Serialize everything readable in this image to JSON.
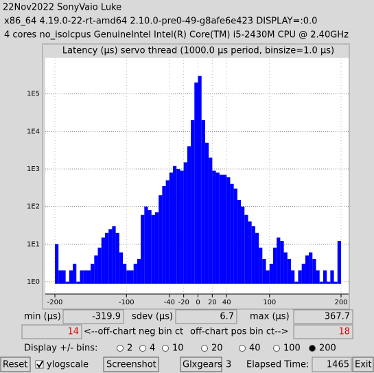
{
  "header": {
    "line1": "22Nov2022 SonyVaio Luke",
    "line2": "x86_64  4.19.0-22-rt-amd64  2.10.0-pre0-49-g8afe6e423  DISPLAY=:0.0",
    "line3": "4 cores  no_isolcpus  GenuineIntel  Intel(R) Core(TM) i5-2430M CPU @ 2.40GHz"
  },
  "chart_data": {
    "type": "histogram",
    "title": "Latency (μs) servo thread (1000.0 μs period, binsize=1.0 μs)",
    "bins": [
      -200,
      -195,
      -190,
      -185,
      -180,
      -175,
      -170,
      -165,
      -160,
      -155,
      -150,
      -145,
      -140,
      -135,
      -130,
      -125,
      -120,
      -115,
      -110,
      -105,
      -100,
      -95,
      -90,
      -85,
      -80,
      -75,
      -70,
      -65,
      -60,
      -55,
      -50,
      -45,
      -40,
      -35,
      -30,
      -25,
      -20,
      -15,
      -10,
      -5,
      0,
      5,
      10,
      15,
      20,
      25,
      30,
      35,
      40,
      45,
      50,
      55,
      60,
      65,
      70,
      75,
      80,
      85,
      90,
      95,
      100,
      105,
      110,
      115,
      120,
      125,
      130,
      135,
      140,
      145,
      150,
      155,
      160,
      165,
      170,
      175,
      180,
      185,
      190,
      195,
      200
    ],
    "values": [
      10,
      2,
      2,
      1,
      2,
      3,
      1,
      2,
      2,
      2,
      3,
      5,
      8,
      15,
      20,
      25,
      30,
      20,
      6,
      3,
      2,
      2,
      3,
      4,
      60,
      100,
      80,
      60,
      70,
      200,
      350,
      500,
      800,
      1200,
      1000,
      900,
      1500,
      4000,
      20000,
      200000,
      300000,
      20000,
      5000,
      2000,
      900,
      800,
      700,
      700,
      600,
      400,
      300,
      150,
      100,
      60,
      40,
      30,
      20,
      8,
      4,
      2,
      3,
      8,
      15,
      12,
      6,
      4,
      2,
      1,
      2,
      3,
      5,
      6,
      4,
      2,
      1,
      2,
      1,
      2,
      1,
      12
    ],
    "color": "#0000ff",
    "log_y": true,
    "grid": true,
    "xlim": [
      -200,
      200
    ],
    "xticks": [
      -200,
      -100,
      -40,
      -20,
      0,
      20,
      40,
      100,
      200
    ],
    "ylim": [
      1,
      1000000
    ],
    "yticks": [
      {
        "value": 1,
        "label": "1E0"
      },
      {
        "value": 10,
        "label": "1E1"
      },
      {
        "value": 100,
        "label": "1E2"
      },
      {
        "value": 1000,
        "label": "1E3"
      },
      {
        "value": 10000,
        "label": "1E4"
      },
      {
        "value": 100000,
        "label": "1E5"
      }
    ]
  },
  "stats": {
    "min_label": "min (μs)",
    "min": -319.9,
    "sdev_label": "sdev (μs)",
    "sdev": 6.7,
    "max_label": "max (μs)",
    "max": 367.7,
    "neg_count": 14,
    "neg_label": "<--off-chart neg bin ct",
    "pos_label": "off-chart pos bin ct-->",
    "pos_count": 18
  },
  "bins_selector": {
    "label": "Display +/- bins:",
    "options": [
      2,
      4,
      10,
      20,
      40,
      100,
      200
    ],
    "selected": 200
  },
  "toolbar": {
    "reset": "Reset",
    "ylogscale": "ylogscale",
    "ylogscale_checked": true,
    "screenshot": "Screenshot",
    "glxgears": "Glxgears",
    "glxgears_count": 3,
    "elapsed_label": "Elapsed Time:",
    "elapsed": 1465,
    "exit": "Exit"
  }
}
